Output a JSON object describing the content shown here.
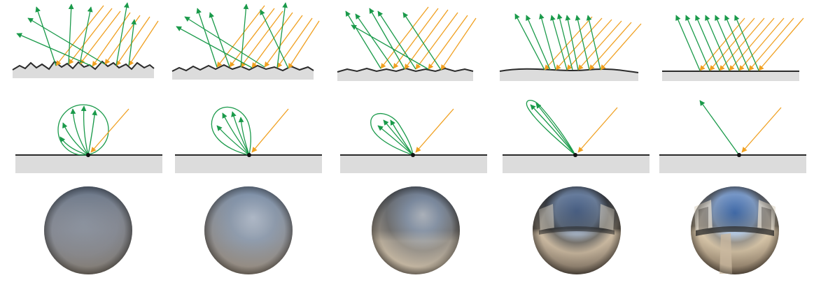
{
  "figure": {
    "columns": [
      {
        "id": "col-1",
        "roughness": 1.0,
        "lobe": "diffuse",
        "ray_count": 5
      },
      {
        "id": "col-2",
        "roughness": 0.75,
        "lobe": "glossy-wide",
        "ray_count": 5
      },
      {
        "id": "col-3",
        "roughness": 0.5,
        "lobe": "glossy",
        "ray_count": 4
      },
      {
        "id": "col-4",
        "roughness": 0.2,
        "lobe": "narrow",
        "ray_count": 2
      },
      {
        "id": "col-5",
        "roughness": 0.0,
        "lobe": "mirror",
        "ray_count": 1
      }
    ],
    "colors": {
      "incident": "#f0a020",
      "reflected": "#1a9a4a",
      "surface": "#2a2a2a",
      "ground": "#dcdcdc"
    },
    "icons": [
      "incident-ray-arrow",
      "reflected-ray-arrow",
      "surface-profile",
      "brdf-lobe",
      "rendered-sphere"
    ]
  }
}
